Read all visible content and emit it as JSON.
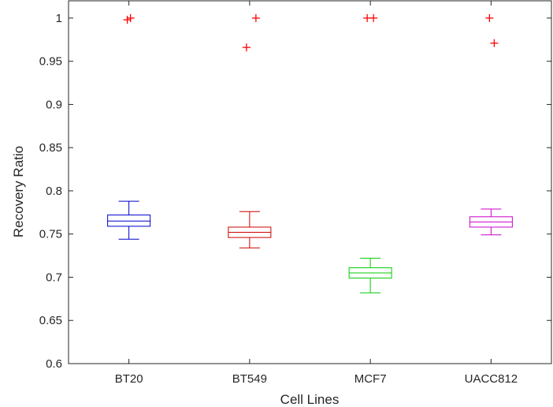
{
  "chart_data": {
    "type": "box",
    "title": "",
    "xlabel": "Cell Lines",
    "ylabel": "Recovery Ratio",
    "ylim": [
      0.6,
      1.02
    ],
    "yticks": [
      "0.6",
      "0.65",
      "0.7",
      "0.75",
      "0.8",
      "0.85",
      "0.9",
      "0.95",
      "1"
    ],
    "grid": false,
    "categories": [
      "BT20",
      "BT549",
      "MCF7",
      "UACC812"
    ],
    "boxes": [
      {
        "name": "BT20",
        "color": "#0000cc",
        "whisker_low": 0.744,
        "q1": 0.759,
        "median": 0.765,
        "q3": 0.772,
        "whisker_high": 0.788,
        "outliers": [
          0.998,
          1.0
        ]
      },
      {
        "name": "BT549",
        "color": "#cc0000",
        "whisker_low": 0.734,
        "q1": 0.746,
        "median": 0.752,
        "q3": 0.758,
        "whisker_high": 0.776,
        "outliers": [
          0.966,
          1.0
        ]
      },
      {
        "name": "MCF7",
        "color": "#00cc00",
        "whisker_low": 0.682,
        "q1": 0.699,
        "median": 0.705,
        "q3": 0.711,
        "whisker_high": 0.722,
        "outliers": [
          1.0,
          1.0
        ]
      },
      {
        "name": "UACC812",
        "color": "#cc00cc",
        "whisker_low": 0.749,
        "q1": 0.758,
        "median": 0.764,
        "q3": 0.77,
        "whisker_high": 0.779,
        "outliers": [
          1.0,
          0.971
        ]
      }
    ],
    "outlier_color": "#ff0000",
    "outlier_marker": "plus"
  }
}
